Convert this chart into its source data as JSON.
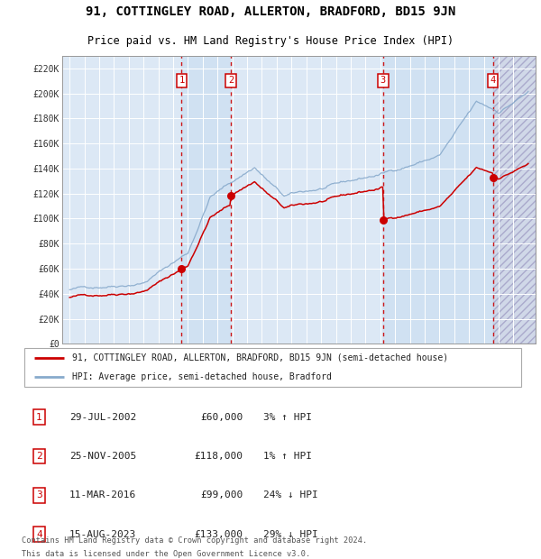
{
  "title": "91, COTTINGLEY ROAD, ALLERTON, BRADFORD, BD15 9JN",
  "subtitle": "Price paid vs. HM Land Registry's House Price Index (HPI)",
  "legend_property": "91, COTTINGLEY ROAD, ALLERTON, BRADFORD, BD15 9JN (semi-detached house)",
  "legend_hpi": "HPI: Average price, semi-detached house, Bradford",
  "footer1": "Contains HM Land Registry data © Crown copyright and database right 2024.",
  "footer2": "This data is licensed under the Open Government Licence v3.0.",
  "ymax": 230000,
  "xmin": 1994.5,
  "xmax": 2026.5,
  "background_color": "#ffffff",
  "plot_bg_color": "#dce8f5",
  "hatch_bg_color": "#d0d0e0",
  "property_color": "#cc0000",
  "hpi_color": "#88aacc",
  "sale_marker_color": "#cc0000",
  "dashed_line_color": "#cc0000",
  "sale_points": [
    {
      "label": "1",
      "date_num": 2002.57,
      "price": 60000,
      "pct": "3%",
      "dir": "↑",
      "date_str": "29-JUL-2002"
    },
    {
      "label": "2",
      "date_num": 2005.9,
      "price": 118000,
      "pct": "1%",
      "dir": "↑",
      "date_str": "25-NOV-2005"
    },
    {
      "label": "3",
      "date_num": 2016.19,
      "price": 99000,
      "pct": "24%",
      "dir": "↓",
      "date_str": "11-MAR-2016"
    },
    {
      "label": "4",
      "date_num": 2023.62,
      "price": 133000,
      "pct": "29%",
      "dir": "↓",
      "date_str": "15-AUG-2023"
    }
  ],
  "grid_color": "#ffffff",
  "tick_label_color": "#333333",
  "box_label_color": "#cc0000",
  "box_edge_color": "#cc0000"
}
